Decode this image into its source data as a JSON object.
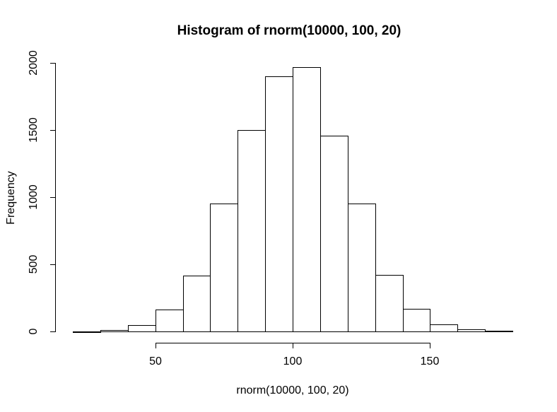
{
  "title": "Histogram of rnorm(10000, 100, 20)",
  "chart_data": {
    "type": "bar",
    "subtype": "histogram",
    "title": "Histogram of rnorm(10000, 100, 20)",
    "xlabel": "rnorm(10000, 100, 20)",
    "ylabel": "Frequency",
    "bin_edges": [
      20,
      30,
      40,
      50,
      60,
      70,
      80,
      90,
      100,
      110,
      120,
      130,
      140,
      150,
      160,
      170,
      180
    ],
    "values": [
      2,
      10,
      45,
      165,
      415,
      955,
      1500,
      1900,
      1970,
      1460,
      950,
      420,
      170,
      55,
      15,
      4
    ],
    "x_ticks": [
      50,
      100,
      150
    ],
    "y_ticks": [
      0,
      500,
      1000,
      1500,
      2000
    ],
    "xlim": [
      20,
      180
    ],
    "ylim": [
      0,
      2000
    ],
    "grid": false,
    "legend": false,
    "bar_fill": "#ffffff",
    "bar_border": "#000000",
    "axis_color": "#000000",
    "background": "#ffffff"
  }
}
